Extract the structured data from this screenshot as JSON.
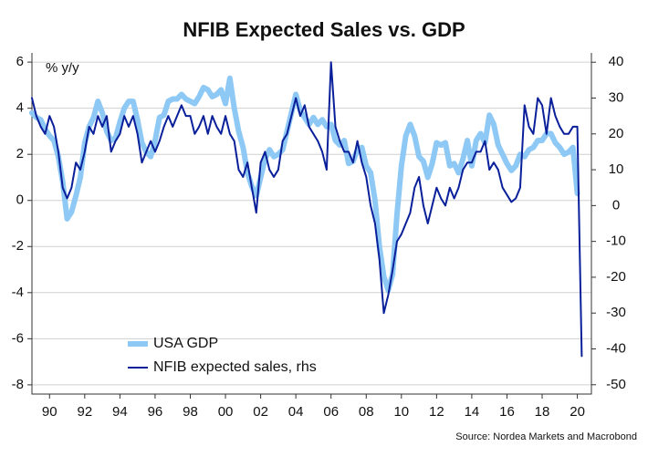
{
  "chart_data": {
    "type": "line",
    "title": "NFIB Expected Sales vs. GDP",
    "y_label": "% y/y",
    "source": "Source: Nordea Markets and Macrobond",
    "legend_position": "lower left",
    "grid": true,
    "xlim": [
      1989,
      2020.8
    ],
    "xticks": [
      {
        "value": 1990,
        "label": "90"
      },
      {
        "value": 1992,
        "label": "92"
      },
      {
        "value": 1994,
        "label": "94"
      },
      {
        "value": 1996,
        "label": "96"
      },
      {
        "value": 1998,
        "label": "98"
      },
      {
        "value": 2000,
        "label": "00"
      },
      {
        "value": 2002,
        "label": "02"
      },
      {
        "value": 2004,
        "label": "04"
      },
      {
        "value": 2006,
        "label": "06"
      },
      {
        "value": 2008,
        "label": "08"
      },
      {
        "value": 2010,
        "label": "10"
      },
      {
        "value": 2012,
        "label": "12"
      },
      {
        "value": 2014,
        "label": "14"
      },
      {
        "value": 2016,
        "label": "16"
      },
      {
        "value": 2018,
        "label": "18"
      },
      {
        "value": 2020,
        "label": "20"
      }
    ],
    "ylim": [
      -8.4,
      6.4
    ],
    "yticks": [
      -8,
      -6,
      -4,
      -2,
      0,
      2,
      4,
      6
    ],
    "y2lim": [
      -52.6,
      42.6
    ],
    "y2ticks": [
      -50,
      -40,
      -30,
      -20,
      -10,
      0,
      10,
      20,
      30,
      40
    ],
    "x": [
      1989,
      1989.25,
      1989.5,
      1989.75,
      1990,
      1990.25,
      1990.5,
      1990.75,
      1991,
      1991.25,
      1991.5,
      1991.75,
      1992,
      1992.25,
      1992.5,
      1992.75,
      1993,
      1993.25,
      1993.5,
      1993.75,
      1994,
      1994.25,
      1994.5,
      1994.75,
      1995,
      1995.25,
      1995.5,
      1995.75,
      1996,
      1996.25,
      1996.5,
      1996.75,
      1997,
      1997.25,
      1997.5,
      1997.75,
      1998,
      1998.25,
      1998.5,
      1998.75,
      1999,
      1999.25,
      1999.5,
      1999.75,
      2000,
      2000.25,
      2000.5,
      2000.75,
      2001,
      2001.25,
      2001.5,
      2001.75,
      2002,
      2002.25,
      2002.5,
      2002.75,
      2003,
      2003.25,
      2003.5,
      2003.75,
      2004,
      2004.25,
      2004.5,
      2004.75,
      2005,
      2005.25,
      2005.5,
      2005.75,
      2006,
      2006.25,
      2006.5,
      2006.75,
      2007,
      2007.25,
      2007.5,
      2007.75,
      2008,
      2008.25,
      2008.5,
      2008.75,
      2009,
      2009.25,
      2009.5,
      2009.75,
      2010,
      2010.25,
      2010.5,
      2010.75,
      2011,
      2011.25,
      2011.5,
      2011.75,
      2012,
      2012.25,
      2012.5,
      2012.75,
      2013,
      2013.25,
      2013.5,
      2013.75,
      2014,
      2014.25,
      2014.5,
      2014.75,
      2015,
      2015.25,
      2015.5,
      2015.75,
      2016,
      2016.25,
      2016.5,
      2016.75,
      2017,
      2017.25,
      2017.5,
      2017.75,
      2018,
      2018.25,
      2018.5,
      2018.75,
      2019,
      2019.25,
      2019.5,
      2019.75,
      2020,
      2020.25
    ],
    "series": [
      {
        "name": "USA GDP",
        "color": "#8ec8f5",
        "width": 6,
        "values": [
          3.8,
          3.6,
          3.5,
          3.1,
          2.8,
          2.6,
          1.9,
          0.8,
          -0.8,
          -0.5,
          0.2,
          1.0,
          2.5,
          3.2,
          3.6,
          4.3,
          3.8,
          3.0,
          2.6,
          2.7,
          3.4,
          4.0,
          4.3,
          4.3,
          3.5,
          2.5,
          2.1,
          1.9,
          2.6,
          3.6,
          3.7,
          4.3,
          4.4,
          4.4,
          4.6,
          4.4,
          4.3,
          4.2,
          4.5,
          4.9,
          4.8,
          4.5,
          4.6,
          4.8,
          4.2,
          5.3,
          4.0,
          3.0,
          2.3,
          1.2,
          0.6,
          0.2,
          1.0,
          1.8,
          2.2,
          1.9,
          2.0,
          2.2,
          3.0,
          3.8,
          4.6,
          3.9,
          3.6,
          3.3,
          3.6,
          3.3,
          3.5,
          3.2,
          3.3,
          2.6,
          2.4,
          2.6,
          1.6,
          1.7,
          2.2,
          2.3,
          1.5,
          1.2,
          0.0,
          -2.0,
          -3.3,
          -3.9,
          -3.2,
          -0.6,
          1.5,
          2.8,
          3.3,
          2.8,
          1.9,
          1.7,
          1.0,
          1.6,
          2.5,
          2.4,
          2.5,
          1.5,
          1.6,
          1.2,
          1.8,
          2.6,
          1.5,
          2.6,
          2.9,
          2.5,
          3.7,
          3.3,
          2.4,
          2.0,
          1.6,
          1.3,
          1.5,
          2.0,
          1.9,
          2.2,
          2.3,
          2.6,
          2.6,
          2.9,
          2.9,
          2.5,
          2.3,
          2.0,
          2.1,
          2.3,
          0.3,
          null
        ]
      },
      {
        "name": "NFIB expected sales, rhs",
        "color": "#0a1f9a",
        "width": 2,
        "axis": "y2",
        "values": [
          30,
          25,
          22,
          20,
          25,
          22,
          15,
          5,
          2,
          5,
          12,
          10,
          15,
          22,
          20,
          25,
          22,
          25,
          15,
          18,
          20,
          25,
          22,
          25,
          20,
          12,
          15,
          18,
          15,
          18,
          22,
          25,
          22,
          25,
          28,
          25,
          25,
          20,
          22,
          25,
          20,
          25,
          22,
          20,
          25,
          20,
          18,
          10,
          8,
          12,
          5,
          -2,
          12,
          15,
          10,
          8,
          10,
          18,
          20,
          25,
          30,
          25,
          28,
          22,
          20,
          18,
          15,
          10,
          40,
          22,
          18,
          15,
          15,
          12,
          18,
          12,
          8,
          0,
          -5,
          -15,
          -30,
          -25,
          -18,
          -10,
          -8,
          -5,
          -2,
          5,
          8,
          0,
          -5,
          0,
          5,
          2,
          0,
          5,
          2,
          5,
          10,
          12,
          12,
          15,
          15,
          18,
          10,
          12,
          10,
          5,
          3,
          1,
          2,
          5,
          28,
          22,
          20,
          30,
          28,
          20,
          30,
          25,
          22,
          20,
          20,
          22,
          22,
          -42
        ]
      }
    ]
  }
}
